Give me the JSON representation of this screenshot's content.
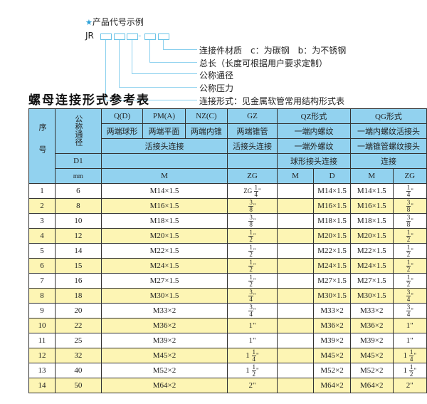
{
  "code_example": {
    "heading": "产品代号示例",
    "star_icon": "star-icon",
    "prefix": "JR",
    "dash": "-",
    "legend": [
      "连接件材质　c：为碳钢　b：为不锈钢",
      "总长（长度可根据用户要求定制）",
      "公称通径",
      "公称压力",
      "连接形式：见金属软管常用结构形式表"
    ]
  },
  "table_title": "螺母连接形式参考表",
  "colors": {
    "header": "#92d2ef",
    "row_alt": "#fdf5b4",
    "accent": "#2aa0d8"
  },
  "header": {
    "seq": "序号",
    "nominal": "公称通径",
    "q": "Q(D)",
    "pm": "PM(A)",
    "nz": "NZ(C)",
    "gz": "GZ",
    "qz": "QZ形式",
    "qg": "QG形式",
    "q_desc": "两端球形",
    "pm_desc": "两端平面",
    "nz_desc": "两端内锥",
    "gz_desc": "两端锥管",
    "qz_desc": "一端内螺纹",
    "qg_desc": "一端内螺纹活接头",
    "union": "活接头连接",
    "gz_union": "活接头连接",
    "qz_desc2": "一端外螺纹",
    "qg_desc2": "一端锥管螺纹接头",
    "d1": "D1",
    "qz_desc3": "球形接头连接",
    "qg_desc3": "连接",
    "mm": "mm",
    "m": "M",
    "zg": "ZG",
    "qz_m": "M",
    "qz_d": "D",
    "qg_m": "M",
    "qg_zg": "ZG"
  },
  "rows": [
    {
      "no": "1",
      "dn": "6",
      "m": "M14×1.5",
      "zg": {
        "pre": "ZG",
        "w": "",
        "n": "1",
        "d": "4",
        "u": "\""
      },
      "qz_m": "",
      "qz_d": "M14×1.5",
      "qg_m": "M14×1.5",
      "qg_zg": {
        "w": "",
        "n": "1",
        "d": "4",
        "u": "\""
      }
    },
    {
      "no": "2",
      "dn": "8",
      "m": "M16×1.5",
      "zg": {
        "w": "",
        "n": "3",
        "d": "8",
        "u": "\""
      },
      "qz_m": "",
      "qz_d": "M16×1.5",
      "qg_m": "M16×1.5",
      "qg_zg": {
        "w": "",
        "n": "3",
        "d": "8",
        "u": "\""
      }
    },
    {
      "no": "3",
      "dn": "10",
      "m": "M18×1.5",
      "zg": {
        "w": "",
        "n": "3",
        "d": "8",
        "u": "\""
      },
      "qz_m": "",
      "qz_d": "M18×1.5",
      "qg_m": "M18×1.5",
      "qg_zg": {
        "w": "",
        "n": "3",
        "d": "8",
        "u": "\""
      }
    },
    {
      "no": "4",
      "dn": "12",
      "m": "M20×1.5",
      "zg": {
        "w": "",
        "n": "1",
        "d": "2",
        "u": "\""
      },
      "qz_m": "",
      "qz_d": "M20×1.5",
      "qg_m": "M20×1.5",
      "qg_zg": {
        "w": "",
        "n": "1",
        "d": "2",
        "u": "\""
      }
    },
    {
      "no": "5",
      "dn": "14",
      "m": "M22×1.5",
      "zg": {
        "w": "",
        "n": "1",
        "d": "2",
        "u": "\""
      },
      "qz_m": "",
      "qz_d": "M22×1.5",
      "qg_m": "M22×1.5",
      "qg_zg": {
        "w": "",
        "n": "1",
        "d": "2",
        "u": "\""
      }
    },
    {
      "no": "6",
      "dn": "15",
      "m": "M24×1.5",
      "zg": {
        "w": "",
        "n": "1",
        "d": "2",
        "u": "\""
      },
      "qz_m": "",
      "qz_d": "M24×1.5",
      "qg_m": "M24×1.5",
      "qg_zg": {
        "w": "",
        "n": "1",
        "d": "2",
        "u": "\""
      }
    },
    {
      "no": "7",
      "dn": "16",
      "m": "M27×1.5",
      "zg": {
        "w": "",
        "n": "1",
        "d": "2",
        "u": "\""
      },
      "qz_m": "",
      "qz_d": "M27×1.5",
      "qg_m": "M27×1.5",
      "qg_zg": {
        "w": "",
        "n": "1",
        "d": "2",
        "u": "\""
      }
    },
    {
      "no": "8",
      "dn": "18",
      "m": "M30×1.5",
      "zg": {
        "w": "",
        "n": "3",
        "d": "4",
        "u": "\""
      },
      "qz_m": "",
      "qz_d": "M30×1.5",
      "qg_m": "M30×1.5",
      "qg_zg": {
        "w": "",
        "n": "3",
        "d": "4",
        "u": "\""
      }
    },
    {
      "no": "9",
      "dn": "20",
      "m": "M33×2",
      "zg": {
        "w": "",
        "n": "3",
        "d": "4",
        "u": "\""
      },
      "qz_m": "",
      "qz_d": "M33×2",
      "qg_m": "M33×2",
      "qg_zg": {
        "w": "",
        "n": "3",
        "d": "4",
        "u": "\""
      }
    },
    {
      "no": "10",
      "dn": "22",
      "m": "M36×2",
      "zg": {
        "text": "1\""
      },
      "qz_m": "",
      "qz_d": "M36×2",
      "qg_m": "M36×2",
      "qg_zg": {
        "text": "1\""
      }
    },
    {
      "no": "11",
      "dn": "25",
      "m": "M39×2",
      "zg": {
        "text": "1\""
      },
      "qz_m": "",
      "qz_d": "M39×2",
      "qg_m": "M39×2",
      "qg_zg": {
        "text": "1\""
      }
    },
    {
      "no": "12",
      "dn": "32",
      "m": "M45×2",
      "zg": {
        "w": "1",
        "n": "1",
        "d": "4",
        "u": "\""
      },
      "qz_m": "",
      "qz_d": "M45×2",
      "qg_m": "M45×2",
      "qg_zg": {
        "w": "1",
        "n": "1",
        "d": "4",
        "u": "\""
      }
    },
    {
      "no": "13",
      "dn": "40",
      "m": "M52×2",
      "zg": {
        "w": "1",
        "n": "1",
        "d": "2",
        "u": "\""
      },
      "qz_m": "",
      "qz_d": "M52×2",
      "qg_m": "M52×2",
      "qg_zg": {
        "w": "1",
        "n": "1",
        "d": "2",
        "u": "\""
      }
    },
    {
      "no": "14",
      "dn": "50",
      "m": "M64×2",
      "zg": {
        "text": "2\""
      },
      "qz_m": "",
      "qz_d": "M64×2",
      "qg_m": "M64×2",
      "qg_zg": {
        "text": "2\""
      }
    }
  ]
}
